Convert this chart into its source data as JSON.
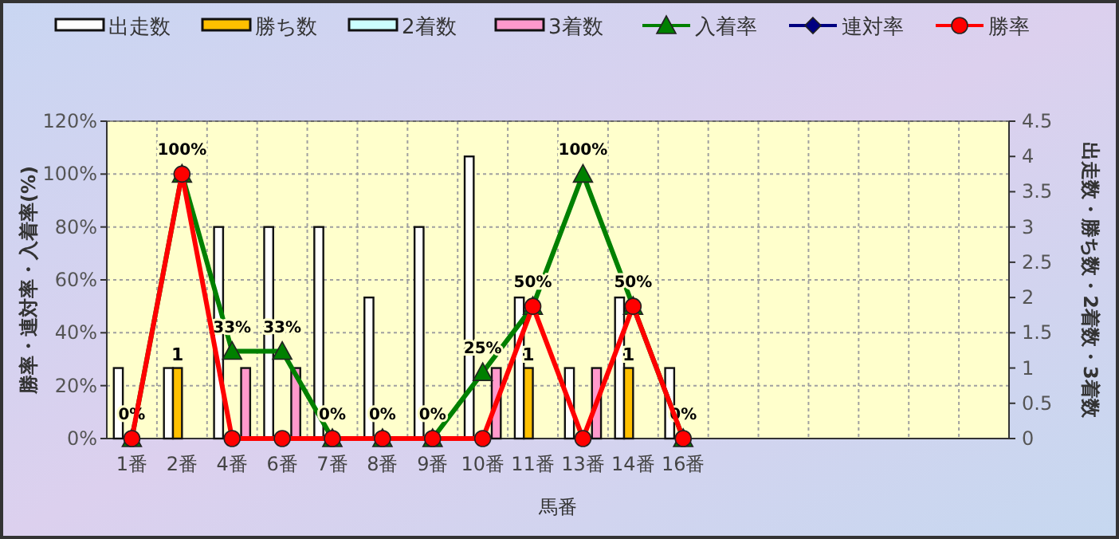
{
  "chart_data": {
    "type": "bar",
    "xlabel": "馬番",
    "ylabel": "勝率・連対率・入着率(%)",
    "y2label": "出走数・勝ち数・2着数・3着数",
    "categories": [
      "1番",
      "2番",
      "4番",
      "6番",
      "7番",
      "8番",
      "9番",
      "10番",
      "11番",
      "13番",
      "14番",
      "16番",
      null,
      null,
      null,
      null,
      null,
      null
    ],
    "series": [
      {
        "name": "出走数",
        "axis": "y2",
        "color": "#ffffff",
        "values": [
          1,
          1,
          3,
          3,
          3,
          2,
          3,
          4,
          2,
          1,
          2,
          1,
          null,
          null,
          null,
          null,
          null,
          null
        ]
      },
      {
        "name": "勝ち数",
        "axis": "y2",
        "color": "#ffc000",
        "values": [
          0,
          1,
          0,
          0,
          0,
          0,
          0,
          0,
          1,
          0,
          1,
          0,
          null,
          null,
          null,
          null,
          null,
          null
        ],
        "value_labels": [
          null,
          "1",
          null,
          null,
          null,
          null,
          null,
          null,
          "1",
          null,
          "1",
          null,
          null,
          null,
          null,
          null,
          null,
          null
        ]
      },
      {
        "name": "2着数",
        "axis": "y2",
        "color": "#ccffff",
        "values": [
          0,
          0,
          0,
          0,
          0,
          0,
          0,
          0,
          0,
          0,
          0,
          0,
          null,
          null,
          null,
          null,
          null,
          null
        ]
      },
      {
        "name": "3着数",
        "axis": "y2",
        "color": "#ff99cc",
        "values": [
          0,
          0,
          1,
          1,
          0,
          0,
          0,
          1,
          0,
          1,
          0,
          0,
          null,
          null,
          null,
          null,
          null,
          null
        ]
      },
      {
        "name": "入着率",
        "type": "line",
        "color": "#008000",
        "marker": "triangle",
        "values": [
          0,
          100,
          33,
          33,
          0,
          0,
          0,
          25,
          50,
          100,
          50,
          0,
          null,
          null,
          null,
          null,
          null,
          null
        ],
        "value_labels": [
          "0%",
          "100%",
          "33%",
          "33%",
          "0%",
          "0%",
          "0%",
          "25%",
          "50%",
          "100%",
          "50%",
          "0%",
          null,
          null,
          null,
          null,
          null,
          null
        ]
      },
      {
        "name": "連対率",
        "type": "line",
        "color": "#000080",
        "marker": "diamond",
        "values": [
          null,
          null,
          null,
          null,
          null,
          null,
          null,
          null,
          null,
          null,
          null,
          null,
          null,
          null,
          null,
          null,
          null,
          null
        ]
      },
      {
        "name": "勝率",
        "type": "line",
        "color": "#ff0000",
        "marker": "circle",
        "values": [
          0,
          100,
          0,
          0,
          0,
          0,
          0,
          0,
          50,
          0,
          50,
          0,
          null,
          null,
          null,
          null,
          null,
          null
        ]
      }
    ],
    "ylim": [
      0,
      120
    ],
    "yticks": [
      {
        "value": 0,
        "label": "0%"
      },
      {
        "value": 20,
        "label": "20%"
      },
      {
        "value": 40,
        "label": "40%"
      },
      {
        "value": 60,
        "label": "60%"
      },
      {
        "value": 80,
        "label": "80%"
      },
      {
        "value": 100,
        "label": "100%"
      },
      {
        "value": 120,
        "label": "120%"
      }
    ],
    "y2lim": [
      0,
      4.5
    ],
    "y2ticks": [
      0,
      0.5,
      1,
      1.5,
      2,
      2.5,
      3,
      3.5,
      4,
      4.5
    ],
    "grid": true,
    "legend": "top"
  }
}
